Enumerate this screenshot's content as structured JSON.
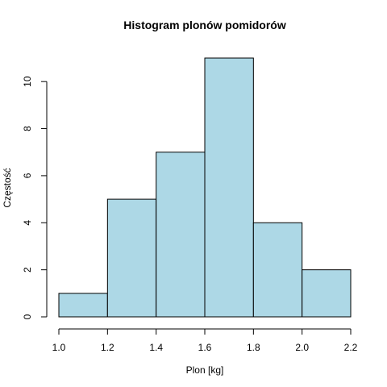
{
  "chart_data": {
    "type": "bar",
    "title": "Histogram plonów pomidorów",
    "xlabel": "Plon [kg]",
    "ylabel": "Częstość",
    "bins": [
      {
        "from": 1.0,
        "to": 1.2,
        "count": 1
      },
      {
        "from": 1.2,
        "to": 1.4,
        "count": 5
      },
      {
        "from": 1.4,
        "to": 1.6,
        "count": 7
      },
      {
        "from": 1.6,
        "to": 1.8,
        "count": 11
      },
      {
        "from": 1.8,
        "to": 2.0,
        "count": 4
      },
      {
        "from": 2.0,
        "to": 2.2,
        "count": 2
      }
    ],
    "xlim": [
      1.0,
      2.2
    ],
    "ylim": [
      0,
      11
    ],
    "x_ticks": [
      "1.0",
      "1.2",
      "1.4",
      "1.6",
      "1.8",
      "2.0",
      "2.2"
    ],
    "y_ticks": [
      "0",
      "2",
      "4",
      "6",
      "8",
      "10"
    ],
    "bar_color": "#add8e6",
    "grid": false,
    "legend": "none"
  }
}
